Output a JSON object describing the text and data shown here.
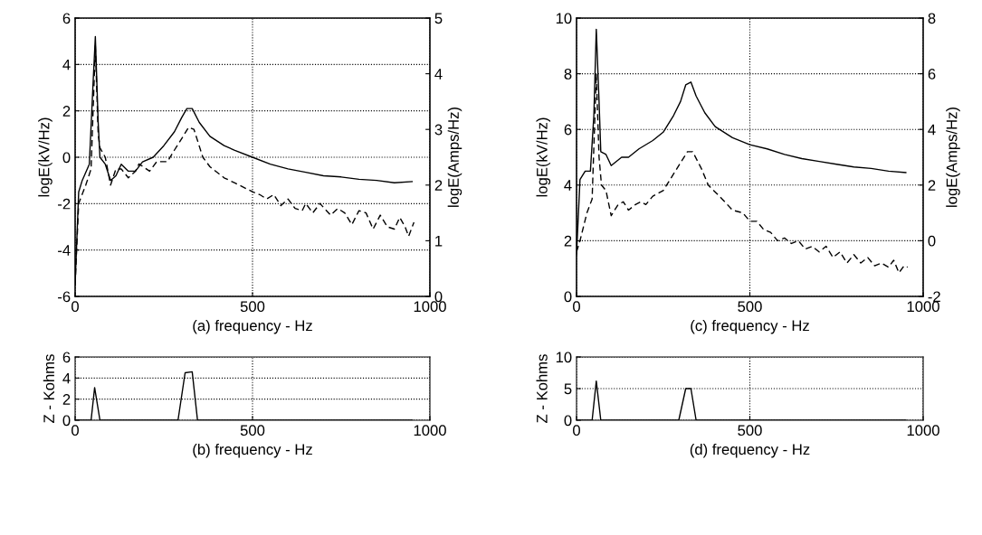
{
  "chart_data": [
    {
      "type": "line",
      "xlabel": "(a) frequency - Hz",
      "ylabel": "logE(kV/Hz)",
      "y2label": "logE(Amps/Hz)",
      "xlim": [
        0,
        1000
      ],
      "xticks": [
        0,
        500,
        1000
      ],
      "ylim": [
        -6,
        6
      ],
      "yticks": [
        -6,
        -4,
        -2,
        0,
        2,
        4,
        6
      ],
      "y2lim": [
        0,
        5
      ],
      "y2ticks": [
        0,
        1,
        2,
        3,
        4,
        5
      ],
      "grid": true,
      "series": [
        {
          "color": "#000000",
          "line_style": "solid",
          "x": [
            0,
            10,
            20,
            40,
            50,
            57,
            65,
            70,
            85,
            100,
            115,
            130,
            150,
            170,
            190,
            220,
            250,
            280,
            300,
            315,
            330,
            350,
            380,
            420,
            450,
            500,
            550,
            600,
            650,
            700,
            750,
            800,
            850,
            900,
            950
          ],
          "values": [
            -5.5,
            -1.5,
            -1.0,
            -0.3,
            3.0,
            5.2,
            1.5,
            0.0,
            -0.3,
            -1.0,
            -0.8,
            -0.3,
            -0.6,
            -0.6,
            -0.2,
            0.0,
            0.5,
            1.1,
            1.7,
            2.1,
            2.1,
            1.5,
            0.9,
            0.5,
            0.3,
            0.0,
            -0.3,
            -0.5,
            -0.65,
            -0.8,
            -0.85,
            -0.95,
            -1.0,
            -1.1,
            -1.05
          ]
        },
        {
          "color": "#000000",
          "line_style": "dashed",
          "axis": "y2",
          "x": [
            0,
            10,
            30,
            45,
            57,
            65,
            70,
            85,
            100,
            115,
            130,
            150,
            170,
            180,
            210,
            230,
            260,
            280,
            300,
            320,
            335,
            360,
            380,
            420,
            450,
            500,
            520,
            540,
            560,
            580,
            600,
            620,
            640,
            650,
            670,
            690,
            720,
            740,
            760,
            780,
            800,
            820,
            840,
            860,
            880,
            900,
            915,
            930,
            940,
            955
          ],
          "values": [
            0.21,
            1.67,
            2.0,
            2.29,
            4.5,
            2.92,
            2.67,
            2.5,
            2.0,
            2.29,
            2.29,
            2.13,
            2.25,
            2.38,
            2.25,
            2.42,
            2.42,
            2.63,
            2.83,
            3.04,
            3.0,
            2.5,
            2.33,
            2.13,
            2.04,
            1.88,
            1.83,
            1.75,
            1.83,
            1.63,
            1.75,
            1.58,
            1.54,
            1.67,
            1.5,
            1.67,
            1.46,
            1.58,
            1.5,
            1.29,
            1.54,
            1.5,
            1.21,
            1.46,
            1.25,
            1.21,
            1.42,
            1.25,
            1.08,
            1.33
          ]
        }
      ]
    },
    {
      "type": "line",
      "xlabel": "(c) frequency - Hz",
      "ylabel": "logE(kV/Hz)",
      "y2label": "logE(Amps/Hz)",
      "xlim": [
        0,
        1000
      ],
      "xticks": [
        0,
        500,
        1000
      ],
      "ylim": [
        0,
        10
      ],
      "yticks": [
        0,
        2,
        4,
        6,
        8,
        10
      ],
      "y2lim": [
        -2,
        8
      ],
      "y2ticks": [
        -2,
        0,
        2,
        4,
        6,
        8
      ],
      "grid": true,
      "series": [
        {
          "color": "#000000",
          "line_style": "solid",
          "x": [
            0,
            10,
            25,
            40,
            50,
            57,
            65,
            70,
            85,
            100,
            130,
            150,
            180,
            220,
            250,
            280,
            300,
            315,
            330,
            345,
            370,
            400,
            450,
            500,
            550,
            600,
            650,
            700,
            750,
            800,
            850,
            900,
            950
          ],
          "values": [
            1.5,
            4.2,
            4.5,
            4.5,
            6.5,
            9.6,
            7.0,
            5.2,
            5.1,
            4.7,
            5.0,
            5.0,
            5.3,
            5.6,
            5.9,
            6.5,
            7.0,
            7.6,
            7.7,
            7.2,
            6.6,
            6.1,
            5.7,
            5.45,
            5.3,
            5.1,
            4.95,
            4.85,
            4.75,
            4.65,
            4.6,
            4.5,
            4.45
          ]
        },
        {
          "color": "#000000",
          "line_style": "dashed",
          "axis": "y2",
          "x": [
            0,
            10,
            30,
            45,
            57,
            65,
            72,
            85,
            100,
            120,
            135,
            150,
            170,
            185,
            200,
            220,
            250,
            280,
            300,
            320,
            335,
            360,
            380,
            420,
            450,
            480,
            500,
            520,
            540,
            560,
            580,
            600,
            620,
            640,
            660,
            680,
            700,
            720,
            740,
            760,
            780,
            800,
            820,
            840,
            860,
            880,
            900,
            915,
            930,
            945,
            955
          ],
          "values": [
            -0.4,
            0.0,
            1.0,
            1.5,
            6.0,
            3.0,
            2.0,
            1.8,
            0.9,
            1.3,
            1.4,
            1.1,
            1.3,
            1.4,
            1.3,
            1.6,
            1.8,
            2.4,
            2.8,
            3.2,
            3.2,
            2.6,
            2.0,
            1.5,
            1.1,
            1.0,
            0.7,
            0.7,
            0.4,
            0.3,
            0.0,
            0.1,
            -0.1,
            0.0,
            -0.3,
            -0.2,
            -0.4,
            -0.2,
            -0.6,
            -0.4,
            -0.8,
            -0.5,
            -0.8,
            -0.6,
            -0.9,
            -0.8,
            -0.95,
            -0.7,
            -1.15,
            -0.9,
            -0.95
          ]
        }
      ]
    },
    {
      "type": "line",
      "xlabel": "(b) frequency - Hz",
      "ylabel": "Z - Kohms",
      "xlim": [
        0,
        1000
      ],
      "xticks": [
        0,
        500,
        1000
      ],
      "ylim": [
        0,
        6
      ],
      "yticks": [
        0,
        2,
        4,
        6
      ],
      "grid": true,
      "series": [
        {
          "color": "#000000",
          "line_style": "solid",
          "x": [
            0,
            45,
            55,
            70,
            290,
            310,
            330,
            345,
            950
          ],
          "values": [
            0,
            0,
            3.1,
            0,
            0,
            4.5,
            4.6,
            0,
            0
          ]
        }
      ]
    },
    {
      "type": "line",
      "xlabel": "(d) frequency - Hz",
      "ylabel": "Z - Kohms",
      "xlim": [
        0,
        1000
      ],
      "xticks": [
        0,
        500,
        1000
      ],
      "ylim": [
        0,
        10
      ],
      "yticks": [
        0,
        5,
        10
      ],
      "grid": true,
      "series": [
        {
          "color": "#000000",
          "line_style": "solid",
          "x": [
            0,
            45,
            57,
            70,
            295,
            315,
            330,
            345,
            950
          ],
          "values": [
            0,
            0,
            6.2,
            0,
            0,
            5.0,
            5.0,
            0,
            0
          ]
        }
      ]
    }
  ]
}
